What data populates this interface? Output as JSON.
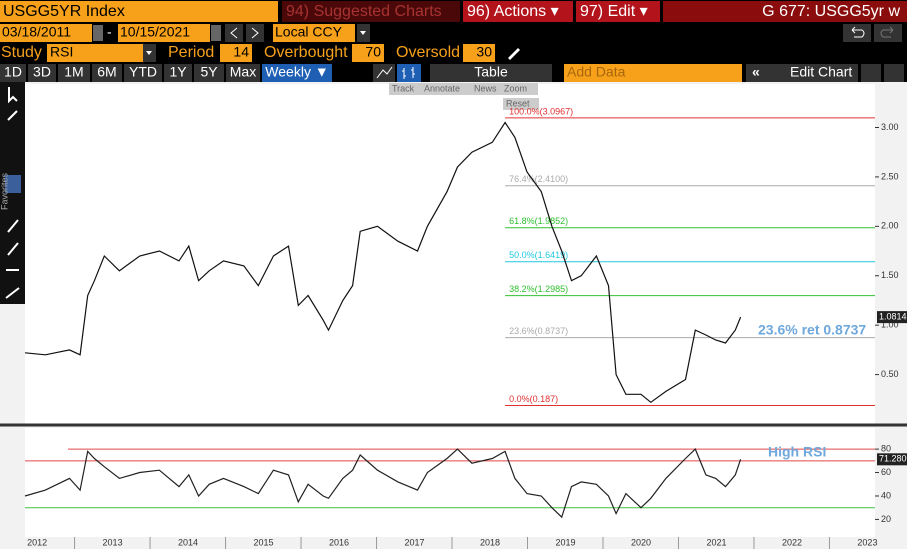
{
  "toolbar": {
    "ticker": "USGG5YR Index",
    "suggested": "94) Suggested Charts",
    "actions": "96) Actions ▾",
    "edit": "97) Edit ▾",
    "screen": "G 677: USGG5yr w"
  },
  "range": {
    "start": "03/18/2011",
    "separator": "-",
    "end": "10/15/2021",
    "currency": "Local CCY"
  },
  "study": {
    "label": "Study",
    "name": "RSI",
    "period_label": "Period",
    "period": 14,
    "overbought_label": "Overbought",
    "overbought": 70,
    "oversold_label": "Oversold",
    "oversold": 30
  },
  "periods": [
    "1D",
    "3D",
    "1M",
    "6M",
    "YTD",
    "1Y",
    "5Y",
    "Max",
    "Weekly ▼"
  ],
  "table": "Table",
  "add_data": "Add Data",
  "edit_chart": "Edit Chart",
  "chart_tools": [
    "Track",
    "Annotate",
    "News",
    "Zoom",
    "Reset"
  ],
  "side_label": "Favorites",
  "chart_data": [
    {
      "type": "line",
      "color": "#111111",
      "x": [
        2012.34,
        2012.61,
        2012.93,
        2013.07,
        2013.17,
        2013.26,
        2013.39,
        2013.59,
        2013.86,
        2014.12,
        2014.38,
        2014.51,
        2014.64,
        2014.78,
        2014.97,
        2015.24,
        2015.43,
        2015.63,
        2015.83,
        2015.96,
        2016.09,
        2016.29,
        2016.36,
        2016.55,
        2016.68,
        2016.78,
        2017.01,
        2017.28,
        2017.54,
        2017.67,
        2017.93,
        2018.07,
        2018.26,
        2018.53,
        2018.7,
        2018.83,
        2018.99,
        2019.18,
        2019.32,
        2019.45,
        2019.58,
        2019.71,
        2019.91,
        2020.07,
        2020.17,
        2020.3,
        2020.5,
        2020.63,
        2020.83,
        2021.09,
        2021.22,
        2021.36,
        2021.49,
        2021.62,
        2021.75,
        2021.82
      ],
      "values": [
        0.72,
        0.7,
        0.75,
        0.7,
        1.3,
        1.45,
        1.7,
        1.55,
        1.7,
        1.75,
        1.65,
        1.8,
        1.45,
        1.55,
        1.65,
        1.6,
        1.4,
        1.7,
        1.8,
        1.2,
        1.3,
        1.05,
        0.95,
        1.25,
        1.4,
        1.95,
        2.0,
        1.85,
        1.75,
        2.0,
        2.35,
        2.6,
        2.75,
        2.85,
        3.05,
        2.9,
        2.55,
        2.35,
        2.0,
        1.75,
        1.45,
        1.5,
        1.7,
        1.4,
        0.5,
        0.3,
        0.3,
        0.22,
        0.33,
        0.45,
        0.95,
        0.9,
        0.85,
        0.82,
        0.95,
        1.0814
      ],
      "xlim": [
        2012.34,
        2023.6
      ],
      "ylim": [
        0,
        3.44
      ],
      "yticks": [
        {
          "value": 0.5,
          "label": "0.50"
        },
        {
          "value": 1,
          "label": "1.00"
        },
        {
          "value": 1.5,
          "label": "1.50"
        },
        {
          "value": 2,
          "label": "2.00"
        },
        {
          "value": 2.5,
          "label": "2.50"
        },
        {
          "value": 3,
          "label": "3.00"
        }
      ],
      "levels": [
        {
          "value": 3.0967,
          "label": "100.0%(3.0967)",
          "color": "#e03030"
        },
        {
          "value": 2.41,
          "label": "76.4%(2.4100)",
          "color": "#aaaaaa"
        },
        {
          "value": 1.9852,
          "label": "61.8%(1.9852)",
          "color": "#30c030"
        },
        {
          "value": 1.6419,
          "label": "50.0%(1.6419)",
          "color": "#20c8e0"
        },
        {
          "value": 1.2985,
          "label": "38.2%(1.2985)",
          "color": "#30c030"
        },
        {
          "value": 0.8737,
          "label": "23.6%(0.8737)",
          "color": "#aaaaaa"
        },
        {
          "value": 0.187,
          "label": "0.0%(0.187)",
          "color": "#e03030"
        }
      ],
      "annotation": "23.6%  ret 0.8737"
    },
    {
      "type": "line",
      "color": "#222222",
      "x": [
        2012.34,
        2012.61,
        2012.93,
        2013.07,
        2013.17,
        2013.26,
        2013.39,
        2013.59,
        2013.86,
        2014.12,
        2014.38,
        2014.51,
        2014.64,
        2014.78,
        2014.97,
        2015.24,
        2015.43,
        2015.63,
        2015.83,
        2015.96,
        2016.09,
        2016.29,
        2016.36,
        2016.55,
        2016.68,
        2016.78,
        2017.01,
        2017.28,
        2017.54,
        2017.67,
        2017.93,
        2018.07,
        2018.26,
        2018.53,
        2018.7,
        2018.83,
        2018.99,
        2019.18,
        2019.32,
        2019.45,
        2019.58,
        2019.71,
        2019.91,
        2020.07,
        2020.17,
        2020.3,
        2020.5,
        2020.63,
        2020.83,
        2021.09,
        2021.22,
        2021.36,
        2021.49,
        2021.62,
        2021.75,
        2021.82
      ],
      "values": [
        40,
        45,
        55,
        45,
        78,
        72,
        65,
        55,
        60,
        62,
        48,
        58,
        40,
        50,
        55,
        48,
        42,
        62,
        58,
        35,
        50,
        40,
        38,
        55,
        62,
        75,
        62,
        52,
        45,
        60,
        72,
        80,
        68,
        72,
        78,
        55,
        42,
        40,
        30,
        22,
        48,
        52,
        50,
        40,
        25,
        42,
        30,
        38,
        55,
        72,
        80,
        58,
        55,
        48,
        58,
        71.2809
      ],
      "xlim": [
        2012.34,
        2023.6
      ],
      "ylim": [
        5,
        98
      ],
      "yticks": [
        20,
        40,
        60,
        80
      ],
      "xticks": [
        {
          "value": 2012.5,
          "label": "2012"
        },
        {
          "value": 2013.5,
          "label": "2013"
        },
        {
          "value": 2014.5,
          "label": "2014"
        },
        {
          "value": 2015.5,
          "label": "2015"
        },
        {
          "value": 2016.5,
          "label": "2016"
        },
        {
          "value": 2017.5,
          "label": "2017"
        },
        {
          "value": 2018.5,
          "label": "2018"
        },
        {
          "value": 2019.5,
          "label": "2019"
        },
        {
          "value": 2020.5,
          "label": "2020"
        },
        {
          "value": 2021.5,
          "label": "2021"
        },
        {
          "value": 2022.5,
          "label": "2022"
        },
        {
          "value": 2023.5,
          "label": "2023"
        }
      ],
      "hlines": [
        {
          "value": 80,
          "color": "#e04848"
        },
        {
          "value": 70,
          "color": "#e04848"
        },
        {
          "value": 30,
          "color": "#40c040"
        }
      ],
      "annotation": "High RSI"
    }
  ]
}
